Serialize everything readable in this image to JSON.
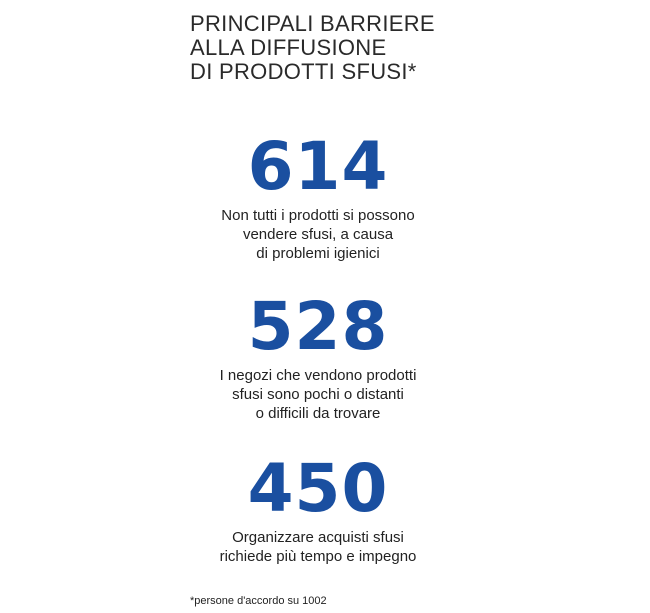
{
  "title": [
    "PRINCIPALI BARRIERE",
    "ALLA DIFFUSIONE",
    "DI PRODOTTI SFUSI*"
  ],
  "accent_color": "#1a4fa0",
  "stats": [
    {
      "value": "614",
      "description": [
        "Non tutti i prodotti si possono",
        "vendere sfusi, a causa",
        "di problemi igienici"
      ]
    },
    {
      "value": "528",
      "description": [
        "I negozi che vendono prodotti",
        "sfusi sono pochi o distanti",
        "o difficili da trovare"
      ]
    },
    {
      "value": "450",
      "description": [
        "Organizzare acquisti sfusi",
        "richiede più tempo e impegno"
      ]
    }
  ],
  "footnote": "*persone d'accordo su 1002"
}
